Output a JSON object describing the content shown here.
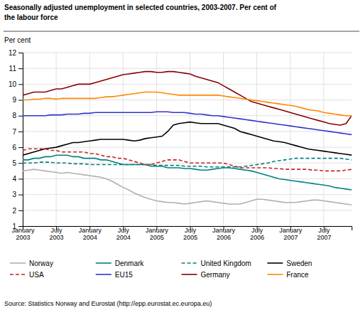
{
  "chart_data": {
    "type": "line",
    "title": "Seasonally adjusted unemployment in selected countries, 2003-2007. Per cent of\nthe labour force",
    "y_label": "Per cent",
    "source": "Source: Statistics Norway and Eurostat (http://epp.eurostat.ec.europa.eu)",
    "categories": [
      "January\n2003",
      null,
      null,
      null,
      null,
      null,
      "July\n2003",
      null,
      null,
      null,
      null,
      null,
      "January\n2004",
      null,
      null,
      null,
      null,
      null,
      "July\n2004",
      null,
      null,
      null,
      null,
      null,
      "January\n2005",
      null,
      null,
      null,
      null,
      null,
      "July\n2005",
      null,
      null,
      null,
      null,
      null,
      "January\n2006",
      null,
      null,
      null,
      null,
      null,
      "July\n2006",
      null,
      null,
      null,
      null,
      null,
      "January\n2007",
      null,
      null,
      null,
      null,
      null,
      "July\n2007",
      null,
      null,
      null,
      null,
      null
    ],
    "ylim": [
      1,
      12
    ],
    "yticks": [
      1,
      2,
      3,
      4,
      5,
      6,
      7,
      8,
      9,
      10,
      11,
      12
    ],
    "grid": true,
    "legend": "bottom",
    "series": [
      {
        "name": "Norway",
        "color": "#b0b0b0",
        "line_style": "solid",
        "values": [
          4.5,
          4.55,
          4.6,
          4.55,
          4.5,
          4.45,
          4.4,
          4.35,
          4.4,
          4.35,
          4.3,
          4.25,
          4.2,
          4.15,
          4.1,
          4.0,
          3.85,
          3.65,
          3.45,
          3.3,
          3.1,
          2.95,
          2.8,
          2.7,
          2.6,
          2.55,
          2.5,
          2.5,
          2.45,
          2.4,
          2.45,
          2.5,
          2.55,
          2.6,
          2.55,
          2.5,
          2.45,
          2.4,
          2.4,
          2.4,
          2.5,
          2.6,
          2.7,
          2.7,
          2.65,
          2.6,
          2.55,
          2.5,
          2.5,
          2.5,
          2.55,
          2.6,
          2.65,
          2.65,
          2.6,
          2.55,
          2.5,
          2.45,
          2.4,
          2.35
        ]
      },
      {
        "name": "Denmark",
        "color": "#008080",
        "line_style": "solid",
        "values": [
          5.2,
          5.2,
          5.3,
          5.3,
          5.4,
          5.4,
          5.5,
          5.5,
          5.5,
          5.4,
          5.4,
          5.3,
          5.3,
          5.3,
          5.2,
          5.2,
          5.1,
          5.0,
          4.9,
          4.9,
          4.9,
          4.9,
          4.9,
          4.8,
          4.8,
          4.8,
          4.7,
          4.7,
          4.7,
          4.65,
          4.65,
          4.6,
          4.55,
          4.55,
          4.6,
          4.65,
          4.7,
          4.7,
          4.65,
          4.6,
          4.55,
          4.5,
          4.4,
          4.3,
          4.2,
          4.1,
          4.0,
          3.95,
          3.9,
          3.85,
          3.8,
          3.75,
          3.7,
          3.65,
          3.6,
          3.55,
          3.45,
          3.4,
          3.35,
          3.3
        ]
      },
      {
        "name": "United Kingdom",
        "color": "#008080",
        "line_style": "dashed",
        "values": [
          5.0,
          5.0,
          5.0,
          5.05,
          5.05,
          5.05,
          5.0,
          5.0,
          5.0,
          4.95,
          4.95,
          4.95,
          4.9,
          4.9,
          4.9,
          4.9,
          4.9,
          4.9,
          4.9,
          4.9,
          4.9,
          4.9,
          4.9,
          4.9,
          4.85,
          4.85,
          4.85,
          4.85,
          4.85,
          4.8,
          4.8,
          4.8,
          4.8,
          4.75,
          4.75,
          4.75,
          4.75,
          4.75,
          4.75,
          4.75,
          4.8,
          4.85,
          4.9,
          4.95,
          5.0,
          5.1,
          5.15,
          5.2,
          5.25,
          5.3,
          5.3,
          5.3,
          5.3,
          5.3,
          5.3,
          5.3,
          5.3,
          5.3,
          5.25,
          5.2
        ]
      },
      {
        "name": "Sweden",
        "color": "#000000",
        "line_style": "solid",
        "values": [
          5.5,
          5.6,
          5.7,
          5.8,
          5.9,
          5.95,
          6.0,
          6.1,
          6.2,
          6.3,
          6.3,
          6.35,
          6.4,
          6.45,
          6.5,
          6.5,
          6.5,
          6.5,
          6.5,
          6.45,
          6.4,
          6.45,
          6.55,
          6.6,
          6.65,
          6.7,
          7.0,
          7.4,
          7.5,
          7.55,
          7.6,
          7.55,
          7.5,
          7.5,
          7.5,
          7.5,
          7.4,
          7.3,
          7.2,
          7.0,
          6.9,
          6.8,
          6.7,
          6.6,
          6.5,
          6.4,
          6.35,
          6.3,
          6.2,
          6.1,
          6.0,
          5.9,
          5.85,
          5.8,
          5.75,
          5.7,
          5.65,
          5.6,
          5.55,
          5.5
        ]
      },
      {
        "name": "USA",
        "color": "#cc2222",
        "line_style": "dashed",
        "values": [
          5.8,
          5.9,
          5.9,
          5.9,
          5.9,
          5.8,
          5.8,
          5.7,
          5.7,
          5.7,
          5.7,
          5.7,
          5.6,
          5.6,
          5.5,
          5.4,
          5.4,
          5.3,
          5.3,
          5.2,
          5.1,
          5.0,
          4.9,
          4.9,
          5.0,
          5.1,
          5.2,
          5.2,
          5.2,
          5.1,
          5.0,
          5.0,
          5.0,
          5.0,
          5.0,
          5.0,
          5.0,
          4.9,
          4.8,
          4.7,
          4.7,
          4.7,
          4.7,
          4.7,
          4.7,
          4.65,
          4.65,
          4.6,
          4.6,
          4.6,
          4.6,
          4.6,
          4.55,
          4.55,
          4.5,
          4.5,
          4.5,
          4.5,
          4.55,
          4.6
        ]
      },
      {
        "name": "EU15",
        "color": "#3333cc",
        "line_style": "solid",
        "values": [
          8.0,
          8.0,
          8.0,
          8.0,
          8.0,
          8.05,
          8.05,
          8.05,
          8.1,
          8.1,
          8.1,
          8.15,
          8.15,
          8.2,
          8.2,
          8.2,
          8.2,
          8.2,
          8.2,
          8.2,
          8.2,
          8.2,
          8.2,
          8.2,
          8.25,
          8.25,
          8.25,
          8.2,
          8.2,
          8.2,
          8.15,
          8.1,
          8.1,
          8.05,
          8.0,
          8.0,
          7.95,
          7.9,
          7.85,
          7.8,
          7.75,
          7.7,
          7.65,
          7.6,
          7.55,
          7.5,
          7.45,
          7.4,
          7.35,
          7.3,
          7.25,
          7.2,
          7.15,
          7.1,
          7.05,
          7.0,
          6.95,
          6.9,
          6.85,
          6.8
        ]
      },
      {
        "name": "Germany",
        "color": "#880000",
        "line_style": "solid",
        "values": [
          9.3,
          9.4,
          9.5,
          9.5,
          9.5,
          9.6,
          9.7,
          9.7,
          9.8,
          9.9,
          10.0,
          10.0,
          10.0,
          10.1,
          10.2,
          10.3,
          10.4,
          10.5,
          10.6,
          10.65,
          10.7,
          10.75,
          10.8,
          10.8,
          10.75,
          10.75,
          10.8,
          10.8,
          10.75,
          10.7,
          10.65,
          10.5,
          10.4,
          10.3,
          10.2,
          10.1,
          9.9,
          9.7,
          9.5,
          9.3,
          9.1,
          8.9,
          8.8,
          8.7,
          8.6,
          8.5,
          8.4,
          8.3,
          8.2,
          8.1,
          8.0,
          7.9,
          7.8,
          7.7,
          7.6,
          7.5,
          7.45,
          7.4,
          7.5,
          8.0
        ]
      },
      {
        "name": "France",
        "color": "#ff8800",
        "line_style": "solid",
        "values": [
          9.0,
          9.0,
          9.05,
          9.05,
          9.1,
          9.1,
          9.05,
          9.1,
          9.1,
          9.1,
          9.1,
          9.1,
          9.1,
          9.1,
          9.15,
          9.2,
          9.2,
          9.25,
          9.3,
          9.35,
          9.4,
          9.45,
          9.5,
          9.5,
          9.5,
          9.45,
          9.4,
          9.35,
          9.3,
          9.3,
          9.3,
          9.3,
          9.3,
          9.3,
          9.3,
          9.3,
          9.25,
          9.2,
          9.15,
          9.1,
          9.05,
          9.0,
          8.95,
          8.9,
          8.85,
          8.8,
          8.75,
          8.7,
          8.65,
          8.6,
          8.5,
          8.4,
          8.35,
          8.3,
          8.2,
          8.15,
          8.1,
          8.05,
          8.0,
          8.0
        ]
      }
    ]
  }
}
